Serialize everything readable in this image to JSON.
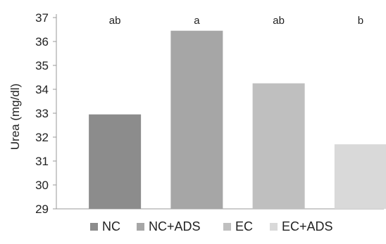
{
  "chart_data": {
    "type": "bar",
    "categories": [
      "NC",
      "NC+ADS",
      "EC",
      "EC+ADS"
    ],
    "values": [
      32.95,
      36.45,
      34.25,
      31.7
    ],
    "significance_letters": [
      "ab",
      "a",
      "ab",
      "b"
    ],
    "colors": [
      "#8c8c8c",
      "#a6a6a6",
      "#bfbfbf",
      "#d9d9d9"
    ],
    "ylabel": "Urea (mg/dl)",
    "xlabel": "",
    "ylim": [
      29,
      37
    ],
    "yticks": [
      29,
      30,
      31,
      32,
      33,
      34,
      35,
      36,
      37
    ],
    "grid": false,
    "legend": {
      "position": "bottom",
      "entries": [
        "NC",
        "NC+ADS",
        "EC",
        "EC+ADS"
      ]
    }
  }
}
